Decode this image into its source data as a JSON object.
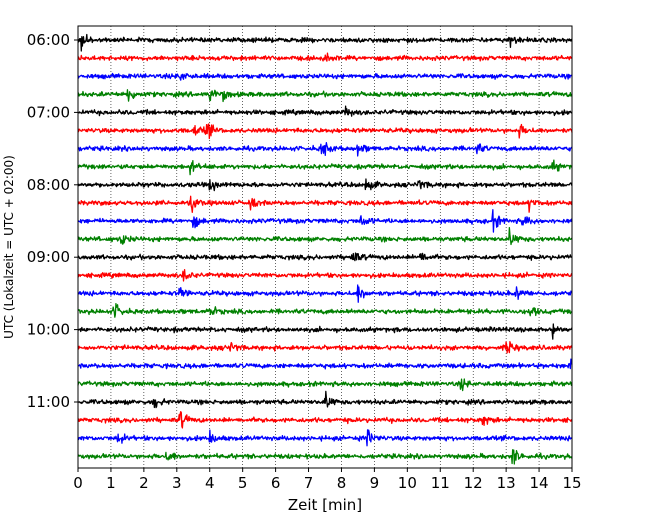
{
  "chart_data": {
    "type": "line",
    "subtype": "helicorder",
    "title": "",
    "xlabel": "Zeit  [min]",
    "ylabel": "UTC (Lokalzeit = UTC + 02:00)",
    "xlim": [
      0,
      15
    ],
    "x_ticks": [
      0,
      1,
      2,
      3,
      4,
      5,
      6,
      7,
      8,
      9,
      10,
      11,
      12,
      13,
      14,
      15
    ],
    "y_tick_labels": [
      "06:00",
      "07:00",
      "08:00",
      "09:00",
      "10:00",
      "11:00"
    ],
    "trace_minutes": 15,
    "start_time": "06:00",
    "grid": "vertical dotted lines at each minute",
    "legend": "none",
    "trace_colors": [
      "#000000",
      "#ff0000",
      "#0000ff",
      "#008000"
    ],
    "traces": [
      {
        "start": "06:00",
        "color": "#000000",
        "events": [
          0.1,
          13.1
        ]
      },
      {
        "start": "06:15",
        "color": "#ff0000",
        "events": [
          7.5
        ]
      },
      {
        "start": "06:30",
        "color": "#0000ff",
        "events": [
          3.1
        ]
      },
      {
        "start": "06:45",
        "color": "#008000",
        "events": [
          1.5,
          4.0,
          4.4
        ]
      },
      {
        "start": "07:00",
        "color": "#000000",
        "events": [
          8.1
        ]
      },
      {
        "start": "07:15",
        "color": "#ff0000",
        "events": [
          3.5,
          3.9,
          13.4
        ]
      },
      {
        "start": "07:30",
        "color": "#0000ff",
        "events": [
          7.4,
          8.5,
          12.1
        ]
      },
      {
        "start": "07:45",
        "color": "#008000",
        "events": [
          3.4,
          14.4
        ]
      },
      {
        "start": "08:00",
        "color": "#000000",
        "events": [
          4.0,
          8.7,
          10.3
        ]
      },
      {
        "start": "08:15",
        "color": "#ff0000",
        "events": [
          3.4,
          5.2,
          13.7
        ]
      },
      {
        "start": "08:30",
        "color": "#0000ff",
        "events": [
          3.5,
          8.6,
          12.6,
          13.5
        ]
      },
      {
        "start": "08:45",
        "color": "#008000",
        "events": [
          1.3,
          13.1
        ]
      },
      {
        "start": "09:00",
        "color": "#000000",
        "events": [
          8.3,
          10.4
        ]
      },
      {
        "start": "09:15",
        "color": "#ff0000",
        "events": [
          3.2
        ]
      },
      {
        "start": "09:30",
        "color": "#0000ff",
        "events": [
          3.1,
          8.5,
          13.3
        ]
      },
      {
        "start": "09:45",
        "color": "#008000",
        "events": [
          1.1,
          4.0,
          13.7
        ]
      },
      {
        "start": "10:00",
        "color": "#000000",
        "events": [
          14.4
        ]
      },
      {
        "start": "10:15",
        "color": "#ff0000",
        "events": [
          4.6,
          13.0
        ]
      },
      {
        "start": "10:30",
        "color": "#0000ff",
        "events": [
          14.9
        ]
      },
      {
        "start": "10:45",
        "color": "#008000",
        "events": [
          11.6
        ]
      },
      {
        "start": "11:00",
        "color": "#000000",
        "events": [
          2.3,
          7.5
        ]
      },
      {
        "start": "11:15",
        "color": "#ff0000",
        "events": [
          3.1,
          12.3
        ]
      },
      {
        "start": "11:30",
        "color": "#0000ff",
        "events": [
          1.2,
          4.0,
          8.8
        ]
      },
      {
        "start": "11:45",
        "color": "#008000",
        "events": [
          2.7,
          13.2
        ]
      }
    ]
  }
}
